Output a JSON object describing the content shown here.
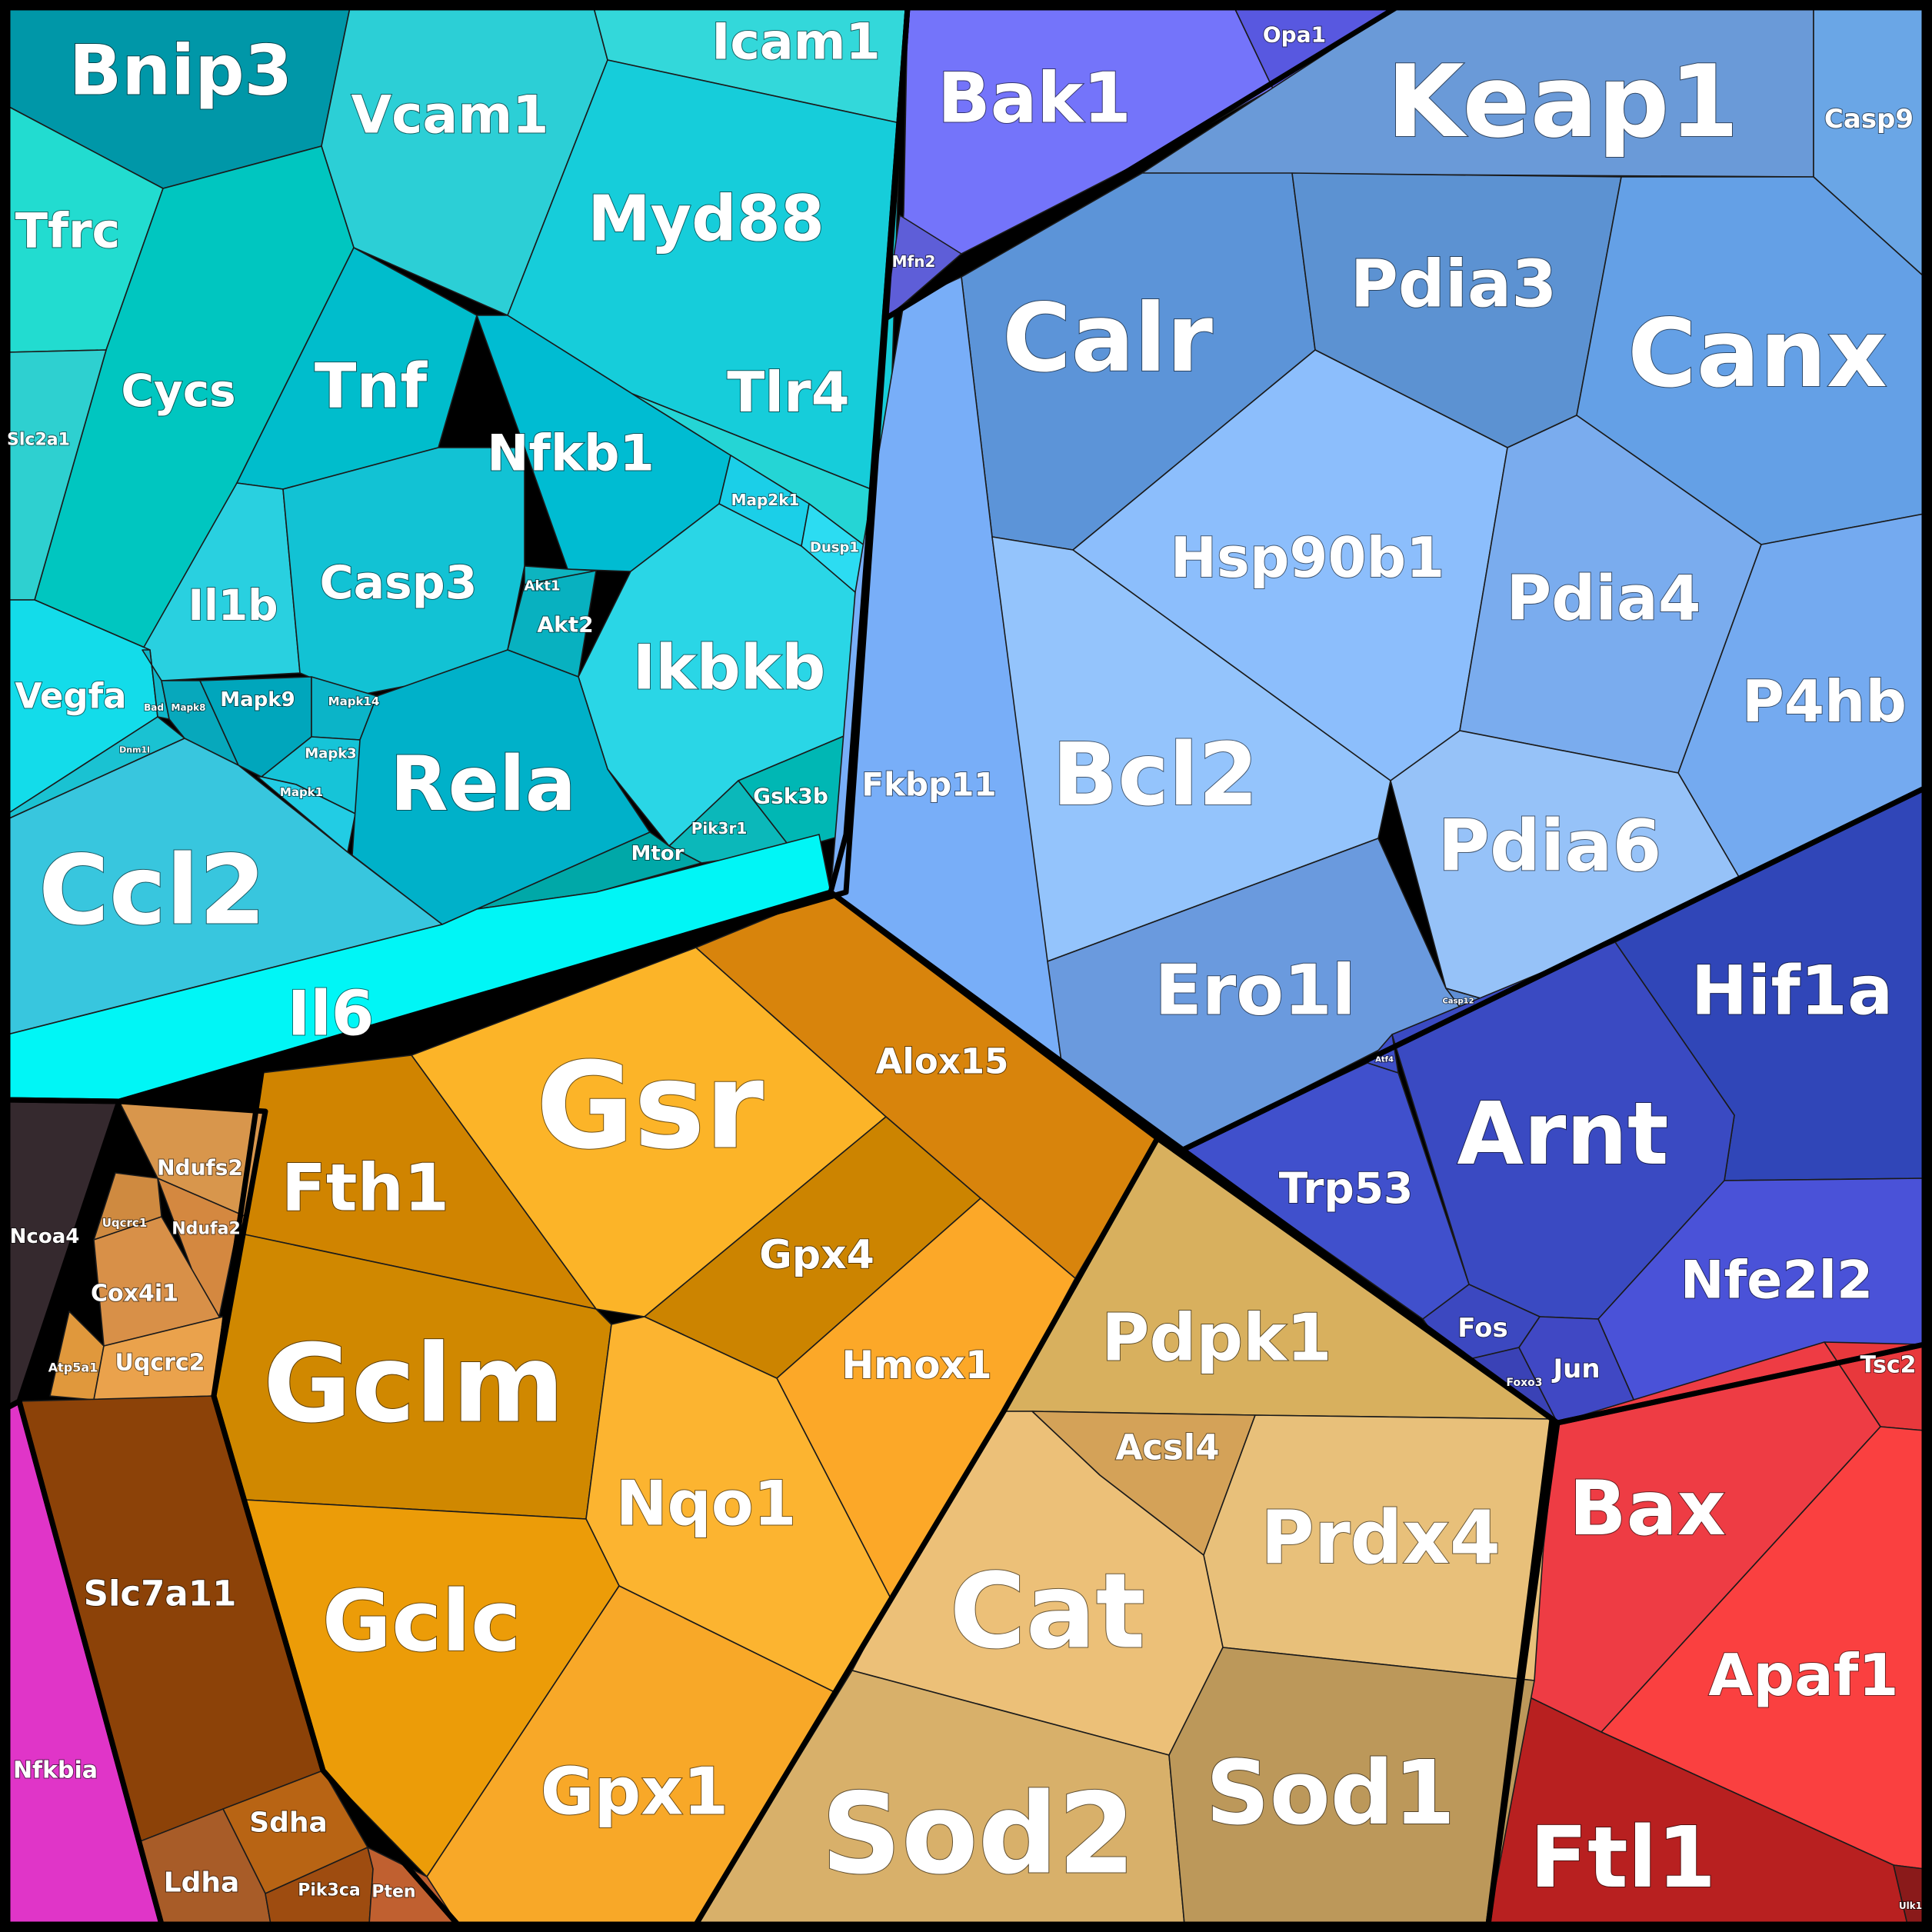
{
  "diagram": {
    "type": "voronoi-treemap",
    "groups": [
      {
        "id": "inflammation",
        "color": "#2ccfd9"
      },
      {
        "id": "er",
        "color": "#7baef0"
      },
      {
        "id": "mito",
        "color": "#6f6ff0"
      },
      {
        "id": "hypoxia",
        "color": "#3f4fcc"
      },
      {
        "id": "apoptosis",
        "color": "#ef4040"
      },
      {
        "id": "antioxidant",
        "color": "#e8a020"
      },
      {
        "id": "ros",
        "color": "#d8b060"
      },
      {
        "id": "metabolism",
        "color": "#a0521c"
      },
      {
        "id": "ferritin",
        "color": "#35292e"
      },
      {
        "id": "nfkb",
        "color": "#e035c8"
      }
    ],
    "cells": [
      {
        "label": "Bnip3",
        "color": "#0097a8"
      },
      {
        "label": "Vcam1",
        "color": "#2ccfd6"
      },
      {
        "label": "Icam1",
        "color": "#33d8da"
      },
      {
        "label": "Myd88",
        "color": "#16cdda"
      },
      {
        "label": "Tfrc",
        "color": "#22dcd0"
      },
      {
        "label": "Cycs",
        "color": "#00c6c0"
      },
      {
        "label": "Slc2a1",
        "color": "#2ed0d0"
      },
      {
        "label": "Tnf",
        "color": "#00bdcc"
      },
      {
        "label": "Nfkb1",
        "color": "#00bcd2"
      },
      {
        "label": "Tlr4",
        "color": "#25d5d5"
      },
      {
        "label": "Il1b",
        "color": "#29d0e0"
      },
      {
        "label": "Casp3",
        "color": "#12c2d4"
      },
      {
        "label": "Ikbkb",
        "color": "#2ad6e6"
      },
      {
        "label": "Map2k1",
        "color": "#1bcfe8"
      },
      {
        "label": "Dusp1",
        "color": "#2cdcf2"
      },
      {
        "label": "Akt1",
        "color": "#0db4c0"
      },
      {
        "label": "Akt2",
        "color": "#08b1c0"
      },
      {
        "label": "Vegfa",
        "color": "#13dcea"
      },
      {
        "label": "Bad",
        "color": "#0fb6c8"
      },
      {
        "label": "Mapk8",
        "color": "#07a8bc"
      },
      {
        "label": "Mapk9",
        "color": "#00a6bc"
      },
      {
        "label": "Mapk14",
        "color": "#0bb4c8"
      },
      {
        "label": "Mapk3",
        "color": "#16c4d8"
      },
      {
        "label": "Mapk1",
        "color": "#22cce4"
      },
      {
        "label": "Dnm1l",
        "color": "#1ac2d2"
      },
      {
        "label": "Rela",
        "color": "#00b1c9"
      },
      {
        "label": "Gsk3b",
        "color": "#00b7b4"
      },
      {
        "label": "Pik3r1",
        "color": "#0bb8ba"
      },
      {
        "label": "Mtor",
        "color": "#00a8a8"
      },
      {
        "label": "Ccl2",
        "color": "#38c6de"
      },
      {
        "label": "Il6",
        "color": "#00f6f6"
      },
      {
        "label": "Bak1",
        "color": "#7474fa"
      },
      {
        "label": "Opa1",
        "color": "#5858e0"
      },
      {
        "label": "Mfn2",
        "color": "#5e5ed8"
      },
      {
        "label": "Keap1",
        "color": "#6a9ad8"
      },
      {
        "label": "Casp9",
        "color": "#6aa6e6"
      },
      {
        "label": "Calr",
        "color": "#5c94d8"
      },
      {
        "label": "Pdia3",
        "color": "#5c92d2"
      },
      {
        "label": "Canx",
        "color": "#64a0e6"
      },
      {
        "label": "Fkbp11",
        "color": "#78aef8"
      },
      {
        "label": "Hsp90b1",
        "color": "#8cbefc"
      },
      {
        "label": "Pdia4",
        "color": "#7aacee"
      },
      {
        "label": "P4hb",
        "color": "#74aaf0"
      },
      {
        "label": "Bcl2",
        "color": "#94c4fc"
      },
      {
        "label": "Pdia6",
        "color": "#96c2f8"
      },
      {
        "label": "Ero1l",
        "color": "#6a9ade"
      },
      {
        "label": "Casp12",
        "color": "#5e8ed4"
      },
      {
        "label": "Hif1a",
        "color": "#3046b8"
      },
      {
        "label": "Arnt",
        "color": "#3a4ac2"
      },
      {
        "label": "Atf4",
        "color": "#3e4ec8"
      },
      {
        "label": "Trp53",
        "color": "#4050cc"
      },
      {
        "label": "Nfe2l2",
        "color": "#4a52d8"
      },
      {
        "label": "Fos",
        "color": "#3c48c0"
      },
      {
        "label": "Foxo3",
        "color": "#3a42b6"
      },
      {
        "label": "Jun",
        "color": "#4048c4"
      },
      {
        "label": "Tsc2",
        "color": "#e8383c"
      },
      {
        "label": "Bax",
        "color": "#ee3c44"
      },
      {
        "label": "Apaf1",
        "color": "#fa4040"
      },
      {
        "label": "Ftl1",
        "color": "#b82020"
      },
      {
        "label": "Ulk1",
        "color": "#8a1a1a"
      },
      {
        "label": "Gsr",
        "color": "#fcb428"
      },
      {
        "label": "Alox15",
        "color": "#d8840c"
      },
      {
        "label": "Fth1",
        "color": "#d08400"
      },
      {
        "label": "Gpx4",
        "color": "#cc8400"
      },
      {
        "label": "Gclm",
        "color": "#d08800"
      },
      {
        "label": "Hmox1",
        "color": "#fca828"
      },
      {
        "label": "Nqo1",
        "color": "#fcb430"
      },
      {
        "label": "Gclc",
        "color": "#ec9c08"
      },
      {
        "label": "Gpx1",
        "color": "#f8a828"
      },
      {
        "label": "Pdpk1",
        "color": "#d8b05e"
      },
      {
        "label": "Acsl4",
        "color": "#d4a258"
      },
      {
        "label": "Prdx4",
        "color": "#e8c07a"
      },
      {
        "label": "Cat",
        "color": "#ecc078"
      },
      {
        "label": "Sod2",
        "color": "#d8b06a"
      },
      {
        "label": "Sod1",
        "color": "#bc985a"
      },
      {
        "label": "Ndufs2",
        "color": "#d8964c"
      },
      {
        "label": "Uqcrc1",
        "color": "#cf8a40"
      },
      {
        "label": "Ndufa2",
        "color": "#d48840"
      },
      {
        "label": "Cox4i1",
        "color": "#d89048"
      },
      {
        "label": "Atp5a1",
        "color": "#e0983c"
      },
      {
        "label": "Uqcrc2",
        "color": "#eaa24c"
      },
      {
        "label": "Slc7a11",
        "color": "#8c4208"
      },
      {
        "label": "Sdha",
        "color": "#b86414"
      },
      {
        "label": "Ldha",
        "color": "#a85c28"
      },
      {
        "label": "Pik3ca",
        "color": "#9e4c10"
      },
      {
        "label": "Pten",
        "color": "#c06030"
      },
      {
        "label": "Ncoa4",
        "color": "#35292e"
      },
      {
        "label": "Nfkbia",
        "color": "#e035c8"
      }
    ]
  }
}
